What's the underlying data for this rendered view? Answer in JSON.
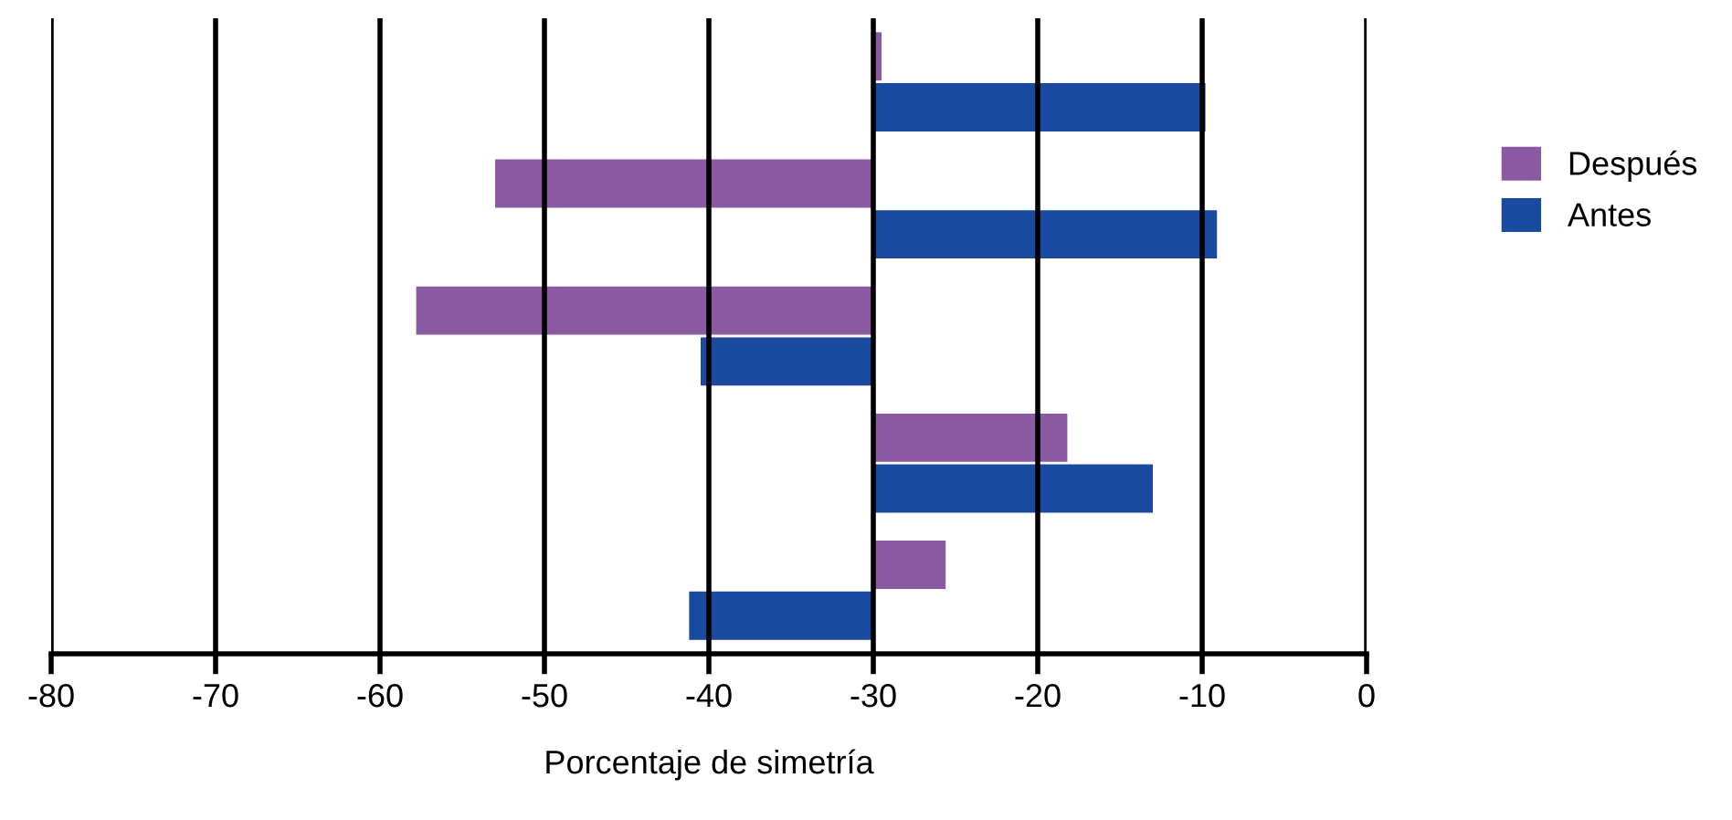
{
  "chart_data": {
    "type": "bar",
    "orientation": "horizontal",
    "xlabel": "Porcentaje de simetría",
    "categories": [
      null,
      null,
      null,
      null,
      null
    ],
    "series": [
      {
        "name": "Después",
        "color": "#8b59a2",
        "base": [
          -30,
          -30,
          -30,
          -30,
          -30
        ],
        "values": [
          0.5,
          -23,
          -27.8,
          11.8,
          4.4
        ]
      },
      {
        "name": "Antes",
        "color": "#1a4aa0",
        "base": [
          -30,
          -30,
          -30,
          -30,
          -30
        ],
        "values": [
          20.2,
          20.9,
          -10.5,
          17,
          -11.2
        ]
      }
    ],
    "xlim": [
      -80,
      0
    ],
    "xticks": [
      -80,
      -70,
      -60,
      -50,
      -40,
      -30,
      -20,
      -10,
      0
    ],
    "grid": "x",
    "legend": "right"
  }
}
